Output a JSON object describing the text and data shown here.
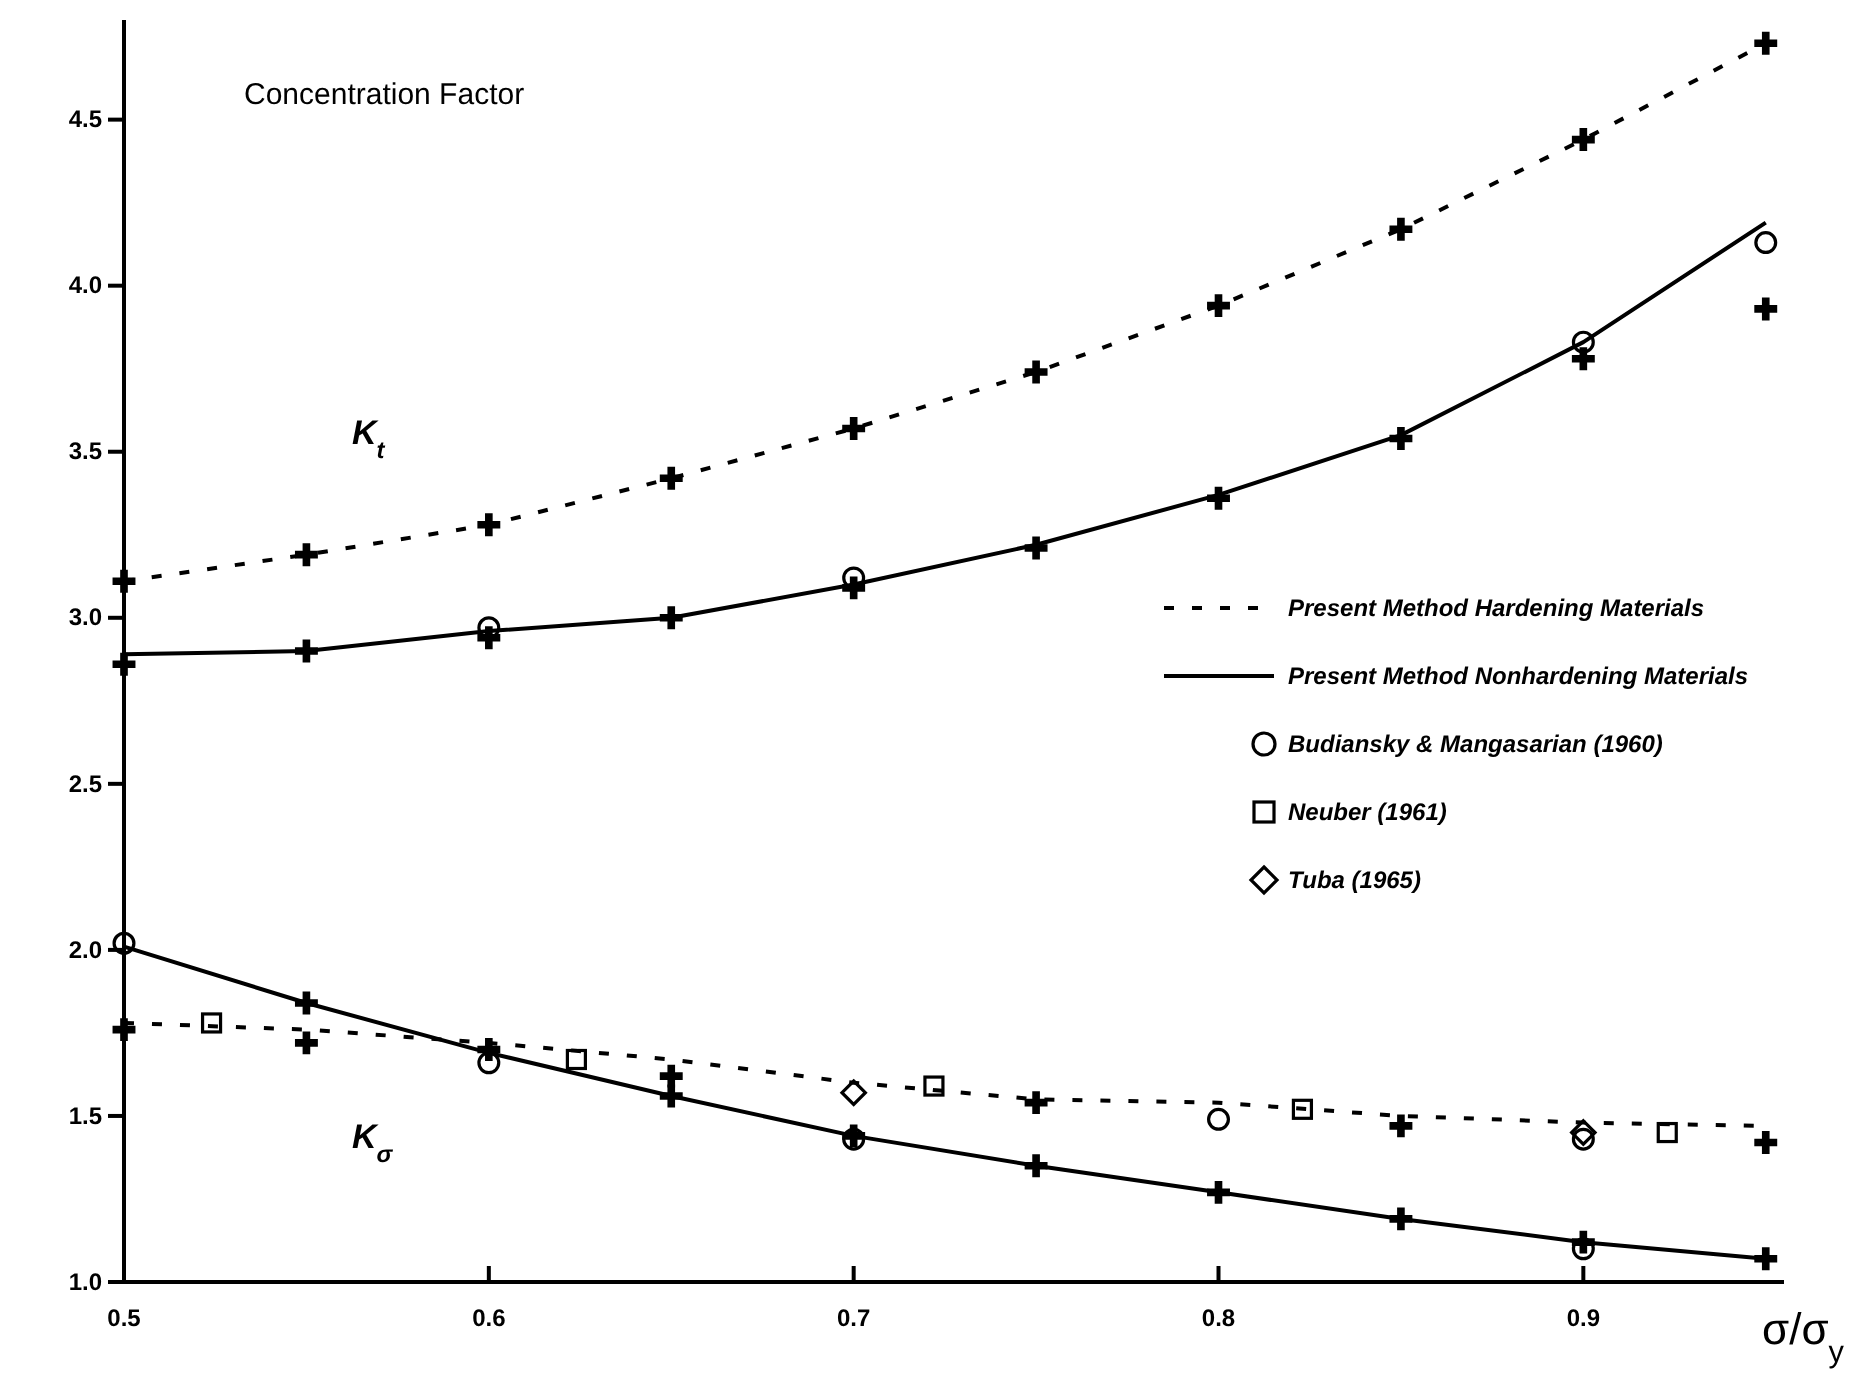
{
  "chart_data": {
    "type": "line",
    "ylabel": "Concentration Factor",
    "xlabel": "σ/σ$_{y}$",
    "xlim": [
      0.5,
      0.955
    ],
    "ylim": [
      1.0,
      4.8
    ],
    "xticks": [
      {
        "value": 0.5,
        "label": "0.5"
      },
      {
        "value": 0.6,
        "label": "0.6"
      },
      {
        "value": 0.7,
        "label": "0.7"
      },
      {
        "value": 0.8,
        "label": "0.8"
      },
      {
        "value": 0.9,
        "label": "0.9"
      }
    ],
    "yticks": [
      {
        "value": 1.0,
        "label": "1.0"
      },
      {
        "value": 1.5,
        "label": "1.5"
      },
      {
        "value": 2.0,
        "label": "2.0"
      },
      {
        "value": 2.5,
        "label": "2.5"
      },
      {
        "value": 3.0,
        "label": "3.0"
      },
      {
        "value": 3.5,
        "label": "3.5"
      },
      {
        "value": 4.0,
        "label": "4.0"
      },
      {
        "value": 4.5,
        "label": "4.5"
      }
    ],
    "grid": false,
    "legend": "right",
    "annotations": [
      "K$_{t}$",
      "K$_{σ}$"
    ],
    "series": [
      {
        "name": "Present Method Hardening Materials",
        "line_style": "dashed",
        "marker": "none",
        "color": "#000000",
        "x": [
          0.5,
          0.55,
          0.6,
          0.65,
          0.7,
          0.75,
          0.8,
          0.85,
          0.9,
          0.95
        ],
        "values": [
          3.11,
          3.19,
          3.28,
          3.42,
          3.57,
          3.74,
          3.94,
          4.17,
          4.44,
          4.73
        ]
      },
      {
        "name": "Present Method Nonhardening Materials",
        "line_style": "solid",
        "marker": "none",
        "color": "#000000",
        "x": [
          0.5,
          0.55,
          0.6,
          0.65,
          0.7,
          0.75,
          0.8,
          0.85,
          0.9,
          0.95
        ],
        "values": [
          2.89,
          2.9,
          2.96,
          3.0,
          3.1,
          3.22,
          3.37,
          3.55,
          3.83,
          4.19
        ]
      },
      {
        "line_style": "dashed",
        "marker": "none",
        "color": "#000000",
        "x": [
          0.5,
          0.55,
          0.6,
          0.65,
          0.7,
          0.75,
          0.8,
          0.85,
          0.9,
          0.95
        ],
        "values": [
          1.78,
          1.76,
          1.72,
          1.67,
          1.6,
          1.55,
          1.54,
          1.5,
          1.48,
          1.47
        ]
      },
      {
        "line_style": "solid",
        "marker": "none",
        "color": "#000000",
        "x": [
          0.5,
          0.55,
          0.6,
          0.65,
          0.7,
          0.75,
          0.8,
          0.85,
          0.9,
          0.95
        ],
        "values": [
          2.01,
          1.84,
          1.69,
          1.56,
          1.44,
          1.35,
          1.27,
          1.19,
          1.12,
          1.07
        ]
      },
      {
        "name": "Budiansky & Mangasarian (1960)",
        "type": "scatter",
        "marker": "circle",
        "color": "#000000",
        "x": [
          0.6,
          0.7,
          0.9,
          0.95,
          0.5,
          0.6,
          0.7,
          0.8,
          0.9,
          0.9
        ],
        "values": [
          2.97,
          3.12,
          3.83,
          4.13,
          2.02,
          1.66,
          1.43,
          1.49,
          1.1,
          1.43
        ]
      },
      {
        "name": "Neuber (1961)",
        "type": "scatter",
        "marker": "square",
        "color": "#000000",
        "x": [
          0.524,
          0.624,
          0.722,
          0.823,
          0.923
        ],
        "values": [
          1.78,
          1.67,
          1.59,
          1.52,
          1.45
        ]
      },
      {
        "name": "Tuba (1965)",
        "type": "scatter",
        "marker": "diamond",
        "color": "#000000",
        "x": [
          0.7,
          0.9
        ],
        "values": [
          1.57,
          1.45
        ]
      },
      {
        "type": "scatter",
        "marker": "cross",
        "color": "#000000",
        "x": [
          0.5,
          0.55,
          0.6,
          0.65,
          0.7,
          0.75,
          0.8,
          0.85,
          0.9,
          0.95,
          0.5,
          0.55,
          0.6,
          0.65,
          0.7,
          0.75,
          0.8,
          0.85,
          0.9,
          0.95,
          0.5,
          0.55,
          0.65,
          0.75,
          0.85,
          0.95,
          0.55,
          0.6,
          0.65,
          0.7,
          0.75,
          0.8,
          0.85,
          0.9,
          0.95
        ],
        "values": [
          3.11,
          3.19,
          3.28,
          3.42,
          3.57,
          3.74,
          3.94,
          4.17,
          4.44,
          4.73,
          2.86,
          2.9,
          2.94,
          3.0,
          3.09,
          3.21,
          3.36,
          3.54,
          3.78,
          3.93,
          1.76,
          1.72,
          1.62,
          1.54,
          1.47,
          1.42,
          1.84,
          1.7,
          1.56,
          1.44,
          1.35,
          1.27,
          1.19,
          1.12,
          1.07
        ]
      }
    ]
  }
}
